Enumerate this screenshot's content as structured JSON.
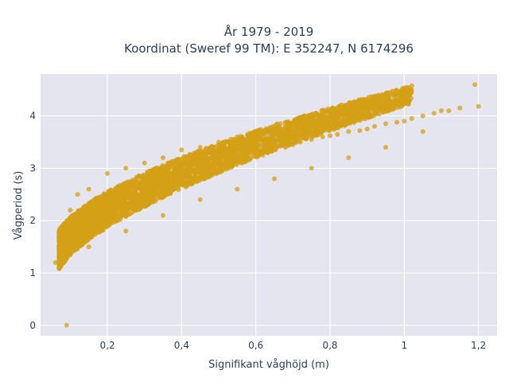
{
  "chart_data": {
    "type": "scatter",
    "title_line1": "År 1979 - 2019",
    "title_line2": "Koordinat (Sweref 99 TM): E 352247, N 6174296",
    "xlabel": "Signifikant våghöjd (m)",
    "ylabel": "Vågperiod (s)",
    "xlim": [
      0.02,
      1.25
    ],
    "ylim": [
      -0.2,
      4.8
    ],
    "xticks": [
      0.2,
      0.4,
      0.6,
      0.8,
      1.0,
      1.2
    ],
    "xtick_labels": [
      "0,2",
      "0,4",
      "0,6",
      "0,8",
      "1",
      "1,2"
    ],
    "yticks": [
      0,
      1,
      2,
      3,
      4
    ],
    "ytick_labels": [
      "0",
      "1",
      "2",
      "3",
      "4"
    ],
    "grid": true,
    "legend": "none",
    "marker_color": "#D4A017",
    "background_color": "#E5E5F0",
    "series": [
      {
        "x": [
          0.09,
          0.06,
          0.07,
          0.08,
          0.1,
          0.12,
          0.14,
          0.16,
          0.18,
          0.2,
          0.22,
          0.25,
          0.28,
          0.3,
          0.33,
          0.35,
          0.38,
          0.4,
          0.42,
          0.45,
          0.48,
          0.5,
          0.52,
          0.55,
          0.58,
          0.6,
          0.62,
          0.65,
          0.68,
          0.7,
          0.72,
          0.75,
          0.78,
          0.8,
          0.82,
          0.85,
          0.88,
          0.9,
          0.92,
          0.95,
          0.98,
          1.0,
          1.02,
          1.05,
          1.08,
          1.1,
          1.12,
          1.15,
          1.19,
          1.2,
          0.1,
          0.12,
          0.15,
          0.2,
          0.25,
          0.3,
          0.35,
          0.4,
          0.45,
          0.5,
          0.55,
          0.6,
          0.65,
          0.7,
          0.75,
          0.8,
          0.85,
          0.9,
          0.95,
          1.0,
          0.15,
          0.25,
          0.35,
          0.45,
          0.55,
          0.65,
          0.75,
          0.85,
          0.95,
          1.05
        ],
        "y": [
          0.0,
          1.2,
          1.5,
          1.3,
          1.6,
          1.7,
          1.85,
          1.95,
          2.05,
          2.15,
          2.25,
          2.35,
          2.45,
          2.5,
          2.6,
          2.65,
          2.75,
          2.8,
          2.85,
          2.95,
          3.0,
          3.05,
          3.1,
          3.15,
          3.2,
          3.25,
          3.3,
          3.35,
          3.4,
          3.45,
          3.5,
          3.55,
          3.6,
          3.62,
          3.65,
          3.7,
          3.72,
          3.75,
          3.8,
          3.85,
          3.88,
          3.9,
          3.95,
          4.0,
          4.05,
          4.1,
          4.1,
          4.15,
          4.6,
          4.18,
          2.2,
          2.5,
          2.6,
          2.9,
          3.0,
          3.1,
          3.2,
          3.35,
          3.4,
          3.5,
          3.6,
          3.7,
          3.75,
          3.8,
          3.9,
          4.1,
          4.2,
          4.3,
          4.4,
          4.5,
          1.5,
          1.8,
          2.1,
          2.4,
          2.6,
          2.8,
          3.0,
          3.2,
          3.4,
          3.7
        ]
      }
    ]
  }
}
